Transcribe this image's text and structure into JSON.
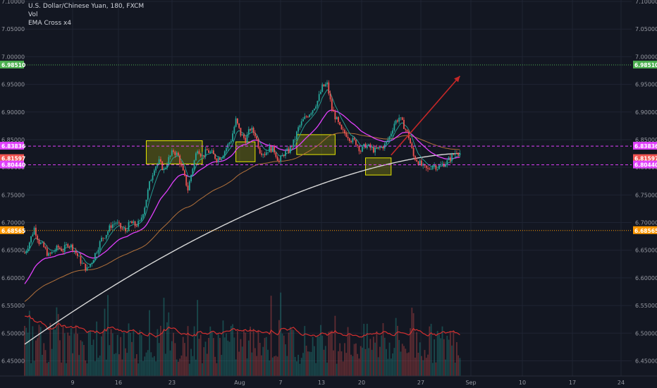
{
  "header": {
    "title": "U.S. Dollar/Chinese Yuan, 180, FXCM",
    "indicator_1": "Vol",
    "indicator_2": "EMA Cross x4"
  },
  "colors": {
    "background": "#131722",
    "up": "#26a69a",
    "down": "#ef5350",
    "ema_fast": "#26a69a",
    "ema_mid": "#e040fb",
    "ema_slow": "#b2713b",
    "ema_long": "#d8d8d8",
    "vol_ma": "#d32f2f",
    "arrow": "#c62828",
    "box": "#e6e600"
  },
  "chart_data": {
    "type": "candlestick",
    "y_axis_ticks": [
      "7.10000",
      "7.05000",
      "7.00000",
      "6.95000",
      "6.90000",
      "6.85000",
      "6.80000",
      "6.75000",
      "6.70000",
      "6.65000",
      "6.60000",
      "6.55000",
      "6.50000",
      "6.45000"
    ],
    "ylim": [
      6.4225,
      7.1
    ],
    "x_axis_ticks": [
      "9",
      "16",
      "23",
      "Aug",
      "7",
      "13",
      "20",
      "27",
      "Sep",
      "10",
      "17",
      "24"
    ],
    "horizontal_levels": [
      {
        "label": "6.98510",
        "value": 6.9851,
        "color": "#4caf50",
        "style": "dotted"
      },
      {
        "label": "6.83836",
        "value": 6.83836,
        "color": "#e040fb",
        "style": "dashed"
      },
      {
        "label": "6.81597",
        "value": 6.81597,
        "color": "#e040fb",
        "style": "price"
      },
      {
        "label": "6.80440",
        "value": 6.8044,
        "color": "#e040fb",
        "style": "dashed"
      },
      {
        "label": "6.68565",
        "value": 6.68565,
        "color": "#ff9800",
        "style": "dotted"
      }
    ],
    "right_axis_tags": [
      {
        "label": "6.98510",
        "value": 6.9851,
        "bg": "#4caf50"
      },
      {
        "label": "6.83836",
        "value": 6.83836,
        "bg": "#e040fb"
      },
      {
        "label": "6.81597",
        "value": 6.81597,
        "bg": "#ef5350"
      },
      {
        "label": "6.80440",
        "value": 6.8044,
        "bg": "#e040fb"
      },
      {
        "label": "6.68565",
        "value": 6.68565,
        "bg": "#ff9800"
      }
    ],
    "price_path": [
      [
        0,
        6.645
      ],
      [
        3,
        6.665
      ],
      [
        6,
        6.69
      ],
      [
        9,
        6.665
      ],
      [
        12,
        6.655
      ],
      [
        15,
        6.64
      ],
      [
        18,
        6.648
      ],
      [
        21,
        6.655
      ],
      [
        24,
        6.65
      ],
      [
        27,
        6.662
      ],
      [
        30,
        6.655
      ],
      [
        33,
        6.64
      ],
      [
        36,
        6.625
      ],
      [
        39,
        6.615
      ],
      [
        42,
        6.63
      ],
      [
        45,
        6.65
      ],
      [
        48,
        6.67
      ],
      [
        51,
        6.68
      ],
      [
        54,
        6.695
      ],
      [
        57,
        6.7
      ],
      [
        60,
        6.69
      ],
      [
        63,
        6.685
      ],
      [
        66,
        6.7
      ],
      [
        69,
        6.695
      ],
      [
        72,
        6.7
      ],
      [
        75,
        6.73
      ],
      [
        78,
        6.77
      ],
      [
        81,
        6.8
      ],
      [
        84,
        6.81
      ],
      [
        87,
        6.795
      ],
      [
        90,
        6.815
      ],
      [
        93,
        6.83
      ],
      [
        96,
        6.82
      ],
      [
        99,
        6.79
      ],
      [
        102,
        6.76
      ],
      [
        105,
        6.8
      ],
      [
        108,
        6.835
      ],
      [
        111,
        6.82
      ],
      [
        114,
        6.83
      ],
      [
        117,
        6.825
      ],
      [
        120,
        6.815
      ],
      [
        123,
        6.82
      ],
      [
        126,
        6.835
      ],
      [
        129,
        6.85
      ],
      [
        132,
        6.885
      ],
      [
        135,
        6.86
      ],
      [
        138,
        6.85
      ],
      [
        141,
        6.87
      ],
      [
        144,
        6.86
      ],
      [
        147,
        6.83
      ],
      [
        150,
        6.825
      ],
      [
        153,
        6.835
      ],
      [
        156,
        6.83
      ],
      [
        159,
        6.81
      ],
      [
        162,
        6.825
      ],
      [
        165,
        6.83
      ],
      [
        168,
        6.845
      ],
      [
        171,
        6.87
      ],
      [
        174,
        6.885
      ],
      [
        177,
        6.895
      ],
      [
        180,
        6.905
      ],
      [
        183,
        6.92
      ],
      [
        186,
        6.945
      ],
      [
        189,
        6.95
      ],
      [
        192,
        6.905
      ],
      [
        195,
        6.885
      ],
      [
        198,
        6.865
      ],
      [
        201,
        6.86
      ],
      [
        204,
        6.85
      ],
      [
        207,
        6.845
      ],
      [
        210,
        6.83
      ],
      [
        213,
        6.84
      ],
      [
        216,
        6.835
      ],
      [
        219,
        6.83
      ],
      [
        222,
        6.835
      ],
      [
        225,
        6.84
      ],
      [
        228,
        6.855
      ],
      [
        231,
        6.88
      ],
      [
        234,
        6.89
      ],
      [
        237,
        6.875
      ],
      [
        240,
        6.855
      ],
      [
        243,
        6.82
      ],
      [
        246,
        6.81
      ],
      [
        249,
        6.8
      ],
      [
        252,
        6.795
      ],
      [
        255,
        6.805
      ],
      [
        258,
        6.8
      ],
      [
        261,
        6.805
      ],
      [
        264,
        6.81
      ],
      [
        267,
        6.82
      ],
      [
        270,
        6.83
      ],
      [
        272,
        6.826
      ]
    ],
    "volume_ylim": [
      0,
      0.12
    ],
    "ema_long_start": 6.48,
    "ema_long_end": 6.825,
    "consolidation_boxes": [
      {
        "x_start": 76,
        "x_end": 111,
        "y_low": 6.806,
        "y_high": 6.848
      },
      {
        "x_start": 132,
        "x_end": 144,
        "y_low": 6.81,
        "y_high": 6.846
      },
      {
        "x_start": 170,
        "x_end": 194,
        "y_low": 6.823,
        "y_high": 6.859
      },
      {
        "x_start": 213,
        "x_end": 229,
        "y_low": 6.786,
        "y_high": 6.817
      }
    ],
    "forecast_arrow": {
      "x_start": 229,
      "y_start": 6.822,
      "x_end": 272,
      "y_end": 6.965
    }
  }
}
